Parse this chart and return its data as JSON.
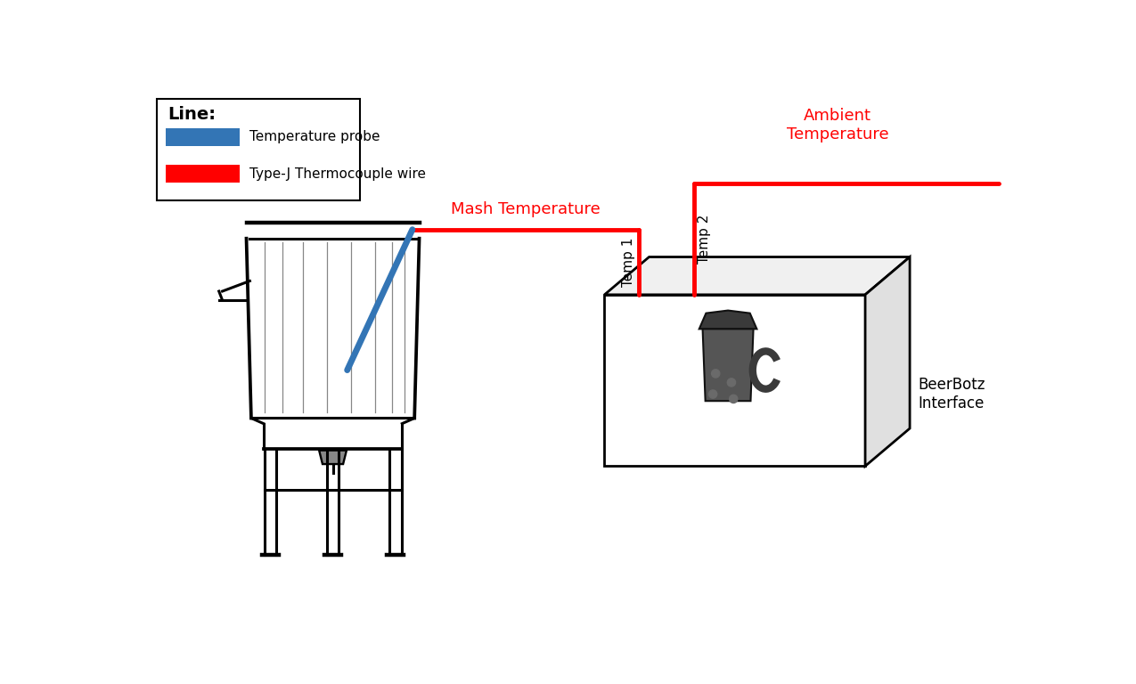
{
  "bg_color": "#ffffff",
  "legend_title": "Line:",
  "legend_items": [
    {
      "label": "Temperature probe",
      "color": "#4472c4"
    },
    {
      "label": "Type-J Thermocouple wire",
      "color": "#ff0000"
    }
  ],
  "mash_temp_label": "Mash Temperature",
  "ambient_temp_label": "Ambient\nTemperature",
  "beerbotz_label": "BeerBotz\nInterface",
  "temp1_label": "Temp 1",
  "temp2_label": "Temp 2",
  "red_wire_color": "#ff0000",
  "blue_wire_color": "#3375b5",
  "line_width": 3.5,
  "pot_color": "#000000",
  "box_front_color": "#ffffff",
  "box_top_color": "#f0f0f0",
  "box_right_color": "#e0e0e0",
  "mug_color": "#3a3a3a",
  "mug_body_color": "#555555"
}
